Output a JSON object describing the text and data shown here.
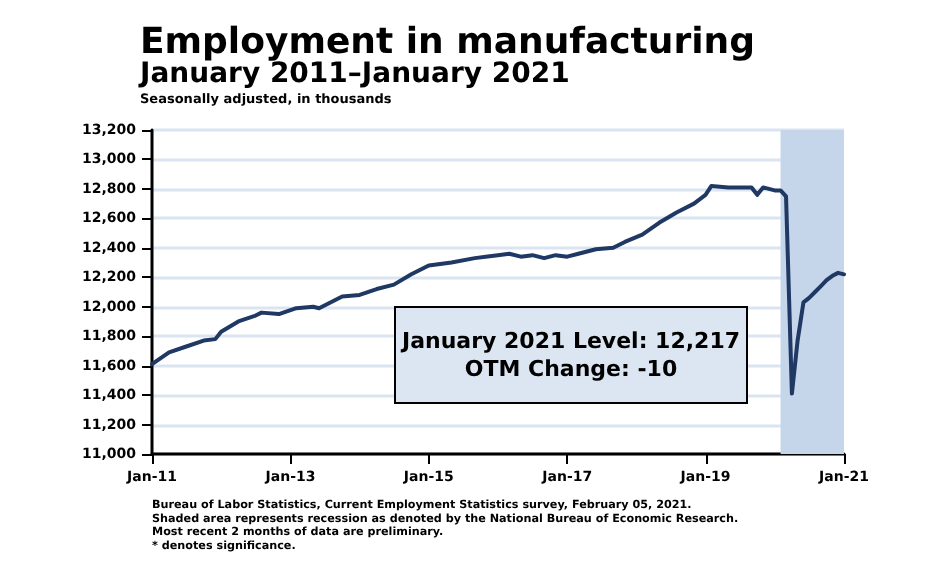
{
  "chart_data": {
    "type": "line",
    "title": "Employment in manufacturing",
    "subtitle": "January 2011–January 2021",
    "ylabel": "Seasonally adjusted, in thousands",
    "x": [
      "2011-01",
      "2011-04",
      "2011-07",
      "2011-10",
      "2011-12",
      "2012-01",
      "2012-04",
      "2012-07",
      "2012-08",
      "2012-11",
      "2013-02",
      "2013-05",
      "2013-06",
      "2013-10",
      "2014-01",
      "2014-04",
      "2014-07",
      "2014-10",
      "2015-01",
      "2015-05",
      "2015-09",
      "2016-01",
      "2016-03",
      "2016-05",
      "2016-07",
      "2016-09",
      "2016-11",
      "2017-01",
      "2017-03",
      "2017-06",
      "2017-09",
      "2017-11",
      "2018-02",
      "2018-05",
      "2018-08",
      "2018-11",
      "2019-01",
      "2019-02",
      "2019-05",
      "2019-09",
      "2019-10",
      "2019-11",
      "2020-01",
      "2020-02",
      "2020-03",
      "2020-04",
      "2020-05",
      "2020-06",
      "2020-07",
      "2020-08",
      "2020-09",
      "2020-10",
      "2020-11",
      "2020-12",
      "2021-01"
    ],
    "series": [
      {
        "color": "#1f3864",
        "values": [
          11610,
          11690,
          11730,
          11770,
          11780,
          11830,
          11900,
          11940,
          11960,
          11950,
          11990,
          12000,
          11990,
          12070,
          12080,
          12120,
          12150,
          12220,
          12280,
          12300,
          12330,
          12350,
          12360,
          12340,
          12350,
          12330,
          12350,
          12340,
          12360,
          12390,
          12400,
          12440,
          12490,
          12570,
          12640,
          12700,
          12760,
          12820,
          12810,
          12810,
          12760,
          12810,
          12790,
          12790,
          12750,
          11410,
          11770,
          12030,
          12060,
          12100,
          12140,
          12180,
          12210,
          12230,
          12220
        ]
      }
    ],
    "xlim": [
      "2011-01",
      "2021-01"
    ],
    "xticks": [
      {
        "value": "2011-01",
        "label": "Jan-11"
      },
      {
        "value": "2013-01",
        "label": "Jan-13"
      },
      {
        "value": "2015-01",
        "label": "Jan-15"
      },
      {
        "value": "2017-01",
        "label": "Jan-17"
      },
      {
        "value": "2019-01",
        "label": "Jan-19"
      },
      {
        "value": "2021-01",
        "label": "Jan-21"
      }
    ],
    "ylim": [
      11000,
      13200
    ],
    "yticks": [
      {
        "value": 11000,
        "label": "11,000"
      },
      {
        "value": 11200,
        "label": "11,200"
      },
      {
        "value": 11400,
        "label": "11,400"
      },
      {
        "value": 11600,
        "label": "11,600"
      },
      {
        "value": 11800,
        "label": "11,800"
      },
      {
        "value": 12000,
        "label": "12,000"
      },
      {
        "value": 12200,
        "label": "12,200"
      },
      {
        "value": 12400,
        "label": "12,400"
      },
      {
        "value": 12600,
        "label": "12,600"
      },
      {
        "value": 12800,
        "label": "12,800"
      },
      {
        "value": 13000,
        "label": "13,000"
      },
      {
        "value": 13200,
        "label": "13,200"
      }
    ],
    "bands": [
      {
        "axis": "x",
        "from": "2020-02",
        "to": "2021-01",
        "color": "#c5d5ea"
      }
    ],
    "grid": "y",
    "marker": "none",
    "line_style": "solid",
    "annotations": [
      "January 2021 Level: 12,217",
      "OTM Change: -10",
      "Bureau of Labor Statistics, Current Employment Statistics survey, February 05, 2021.",
      "Shaded area represents recession as denoted by the National Bureau of Economic Research.",
      "Most recent 2 months of data are preliminary.",
      "* denotes significance."
    ]
  }
}
